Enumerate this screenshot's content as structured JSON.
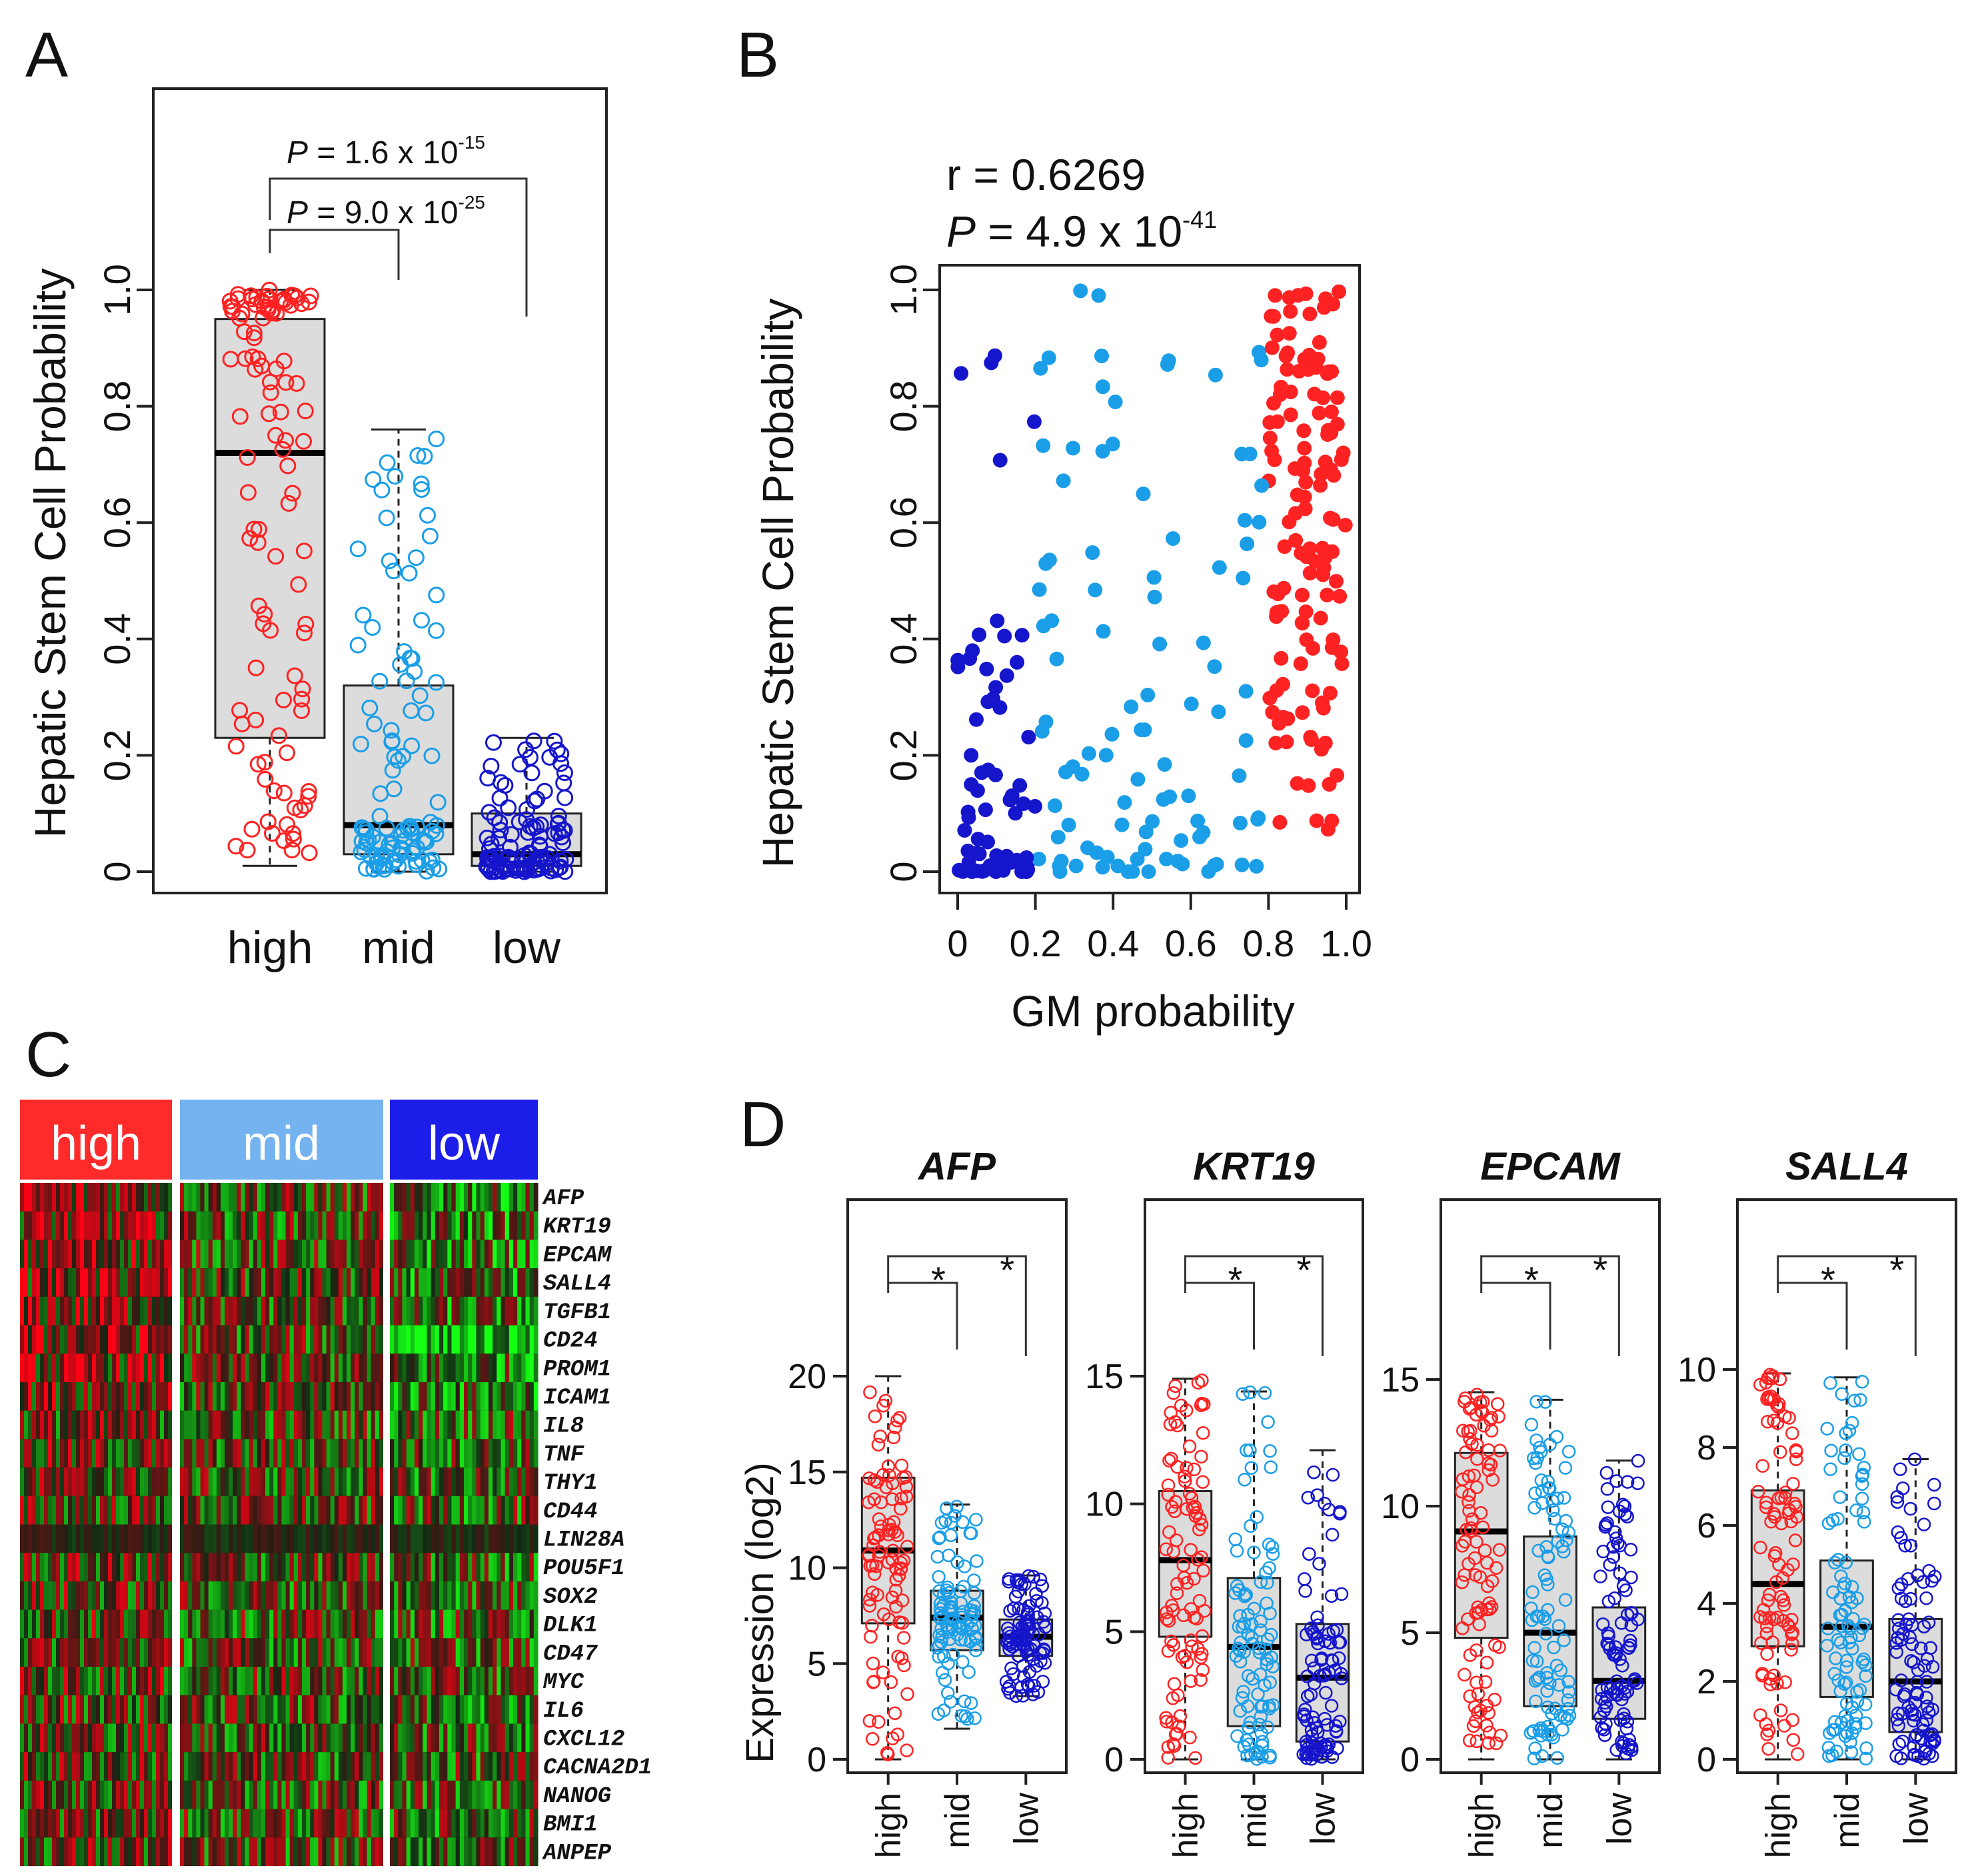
{
  "colors": {
    "high": "#ff2222",
    "mid": "#1a9ee8",
    "low": "#1515cc",
    "box_fill": "#dcdcdc",
    "heat_high": "#ff2a2a",
    "heat_mid": "#74b3f0",
    "heat_low": "#1d1dea"
  },
  "panels": {
    "a": "A",
    "b": "B",
    "c": "C",
    "d": "D"
  },
  "chart_data": [
    {
      "id": "A",
      "type": "boxplot",
      "ylabel": "Hepatic Stem Cell Probability",
      "ylim": [
        0,
        1
      ],
      "yticks": [
        "0",
        "0.2",
        "0.4",
        "0.6",
        "0.8",
        "1.0"
      ],
      "categories": [
        "high",
        "mid",
        "low"
      ],
      "boxes": [
        {
          "q1": 0.23,
          "median": 0.72,
          "q3": 0.95,
          "whisk_lo": 0.01,
          "whisk_hi": 1.0
        },
        {
          "q1": 0.03,
          "median": 0.08,
          "q3": 0.32,
          "whisk_lo": 0.0,
          "whisk_hi": 0.76
        },
        {
          "q1": 0.01,
          "median": 0.03,
          "q3": 0.1,
          "whisk_lo": 0.0,
          "whisk_hi": 0.23
        }
      ],
      "pvalues": [
        {
          "label": "P",
          "text": " = 1.6 x 10",
          "exp": "-15"
        },
        {
          "label": "P",
          "text": " = 9.0 x 10",
          "exp": "-25"
        }
      ]
    },
    {
      "id": "B",
      "type": "scatter",
      "r_text": "r = 0.6269",
      "p_label": "P",
      "p_text": " = 4.9 x 10",
      "p_exp": "-41",
      "xlabel": "GM probability",
      "ylabel": "Hepatic Stem Cell Probability",
      "xlim": [
        0,
        1
      ],
      "ylim": [
        0,
        1
      ],
      "xticks": [
        "0",
        "0.2",
        "0.4",
        "0.6",
        "0.8",
        "1.0"
      ],
      "yticks": [
        "0",
        "0.2",
        "0.4",
        "0.6",
        "0.8",
        "1.0"
      ],
      "thresholds": [
        0.2,
        0.8
      ],
      "n_points": 300
    },
    {
      "id": "C",
      "type": "heatmap",
      "groups": [
        "high",
        "mid",
        "low"
      ],
      "genes": [
        "AFP",
        "KRT19",
        "EPCAM",
        "SALL4",
        "TGFB1",
        "CD24",
        "PROM1",
        "ICAM1",
        "IL8",
        "TNF",
        "THY1",
        "CD44",
        "LIN28A",
        "POU5F1",
        "SOX2",
        "DLK1",
        "CD47",
        "MYC",
        "IL6",
        "CXCL12",
        "CACNA2D1",
        "NANOG",
        "BMI1",
        "ANPEP"
      ]
    },
    {
      "id": "D",
      "type": "boxplot",
      "ylabel": "Expression (log2)",
      "categories": [
        "high",
        "mid",
        "low"
      ],
      "sig_marker": "*",
      "subplots": [
        {
          "title": "AFP",
          "ylim": [
            0,
            20
          ],
          "yticks": [
            "0",
            "5",
            "10",
            "15",
            "20"
          ],
          "boxes": [
            {
              "q1": 7.1,
              "median": 10.9,
              "q3": 14.7,
              "whisk_lo": 0,
              "whisk_hi": 20
            },
            {
              "q1": 5.7,
              "median": 7.4,
              "q3": 8.8,
              "whisk_lo": 1.6,
              "whisk_hi": 13.3
            },
            {
              "q1": 5.4,
              "median": 6.4,
              "q3": 7.3,
              "whisk_lo": 3.3,
              "whisk_hi": 9.6
            }
          ]
        },
        {
          "title": "KRT19",
          "ylim": [
            0,
            15
          ],
          "yticks": [
            "0",
            "5",
            "10",
            "15"
          ],
          "boxes": [
            {
              "q1": 4.8,
              "median": 7.8,
              "q3": 10.5,
              "whisk_lo": 0,
              "whisk_hi": 14.9
            },
            {
              "q1": 1.3,
              "median": 4.4,
              "q3": 7.1,
              "whisk_lo": 0,
              "whisk_hi": 14.4
            },
            {
              "q1": 0.7,
              "median": 3.2,
              "q3": 5.3,
              "whisk_lo": 0,
              "whisk_hi": 12.1
            }
          ]
        },
        {
          "title": "EPCAM",
          "ylim": [
            0,
            15
          ],
          "yticks": [
            "0",
            "5",
            "10",
            "15"
          ],
          "boxes": [
            {
              "q1": 4.8,
              "median": 9.0,
              "q3": 12.1,
              "whisk_lo": 0,
              "whisk_hi": 14.5
            },
            {
              "q1": 2.1,
              "median": 5.0,
              "q3": 8.8,
              "whisk_lo": 0,
              "whisk_hi": 14.2
            },
            {
              "q1": 1.6,
              "median": 3.1,
              "q3": 6.0,
              "whisk_lo": 0,
              "whisk_hi": 11.8
            }
          ]
        },
        {
          "title": "SALL4",
          "ylim": [
            0,
            10
          ],
          "yticks": [
            "0",
            "2",
            "4",
            "6",
            "8",
            "10"
          ],
          "boxes": [
            {
              "q1": 2.9,
              "median": 4.5,
              "q3": 6.9,
              "whisk_lo": 0,
              "whisk_hi": 9.9
            },
            {
              "q1": 1.6,
              "median": 3.4,
              "q3": 5.1,
              "whisk_lo": 0,
              "whisk_hi": 9.8
            },
            {
              "q1": 0.7,
              "median": 2.0,
              "q3": 3.6,
              "whisk_lo": 0,
              "whisk_hi": 7.7
            }
          ]
        }
      ]
    }
  ]
}
